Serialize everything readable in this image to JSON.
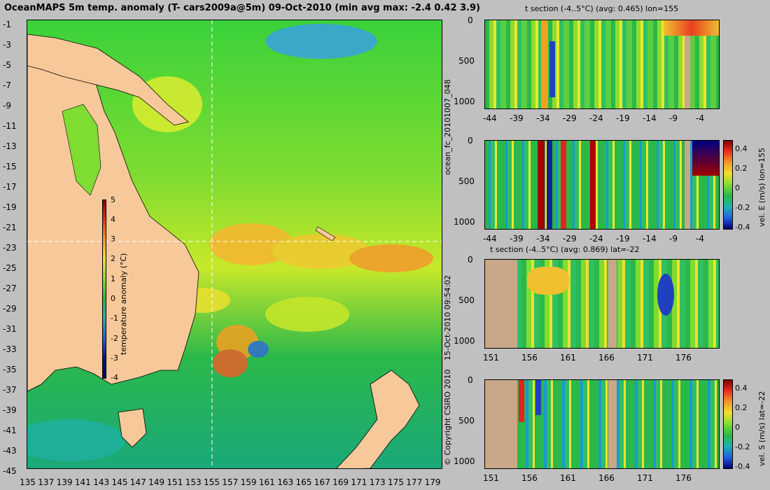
{
  "title": "OceanMAPS 5m temp. anomaly (T- cars2009a@5m) 09-Oct-2010 (min avg max: -2.4 0.42 3.9)",
  "map": {
    "lat_labels": [
      "-1",
      "-3",
      "-5",
      "-7",
      "-9",
      "-11",
      "-13",
      "-15",
      "-17",
      "-19",
      "-21",
      "-23",
      "-25",
      "-27",
      "-29",
      "-31",
      "-33",
      "-35",
      "-37",
      "-39",
      "-41",
      "-43",
      "-45"
    ],
    "lon_labels": [
      "135",
      "137",
      "139",
      "141",
      "143",
      "145",
      "147",
      "149",
      "151",
      "153",
      "155",
      "157",
      "159",
      "161",
      "163",
      "165",
      "167",
      "169",
      "171",
      "173",
      "175",
      "177",
      "179"
    ],
    "colorbar": {
      "label": "temperature anomaly (°C)",
      "ticks": [
        "5",
        "4",
        "3",
        "2",
        "1",
        "0",
        "-1",
        "-2",
        "-3",
        "-4"
      ],
      "range": [
        -4,
        5
      ]
    },
    "crosshair": {
      "lon": 155,
      "lat": -22
    }
  },
  "panels": [
    {
      "title": "t section (-4..5°C) (avg: 0.465) lon=155",
      "y_ticks": [
        "0",
        "500",
        "1000"
      ],
      "x_ticks": [
        "-44",
        "-39",
        "-34",
        "-29",
        "-24",
        "-19",
        "-14",
        "-9",
        "-4"
      ]
    },
    {
      "title": "",
      "y_ticks": [
        "0",
        "500",
        "1000"
      ],
      "x_ticks": [
        "-44",
        "-39",
        "-34",
        "-29",
        "-24",
        "-19",
        "-14",
        "-9",
        "-4"
      ],
      "colorbar": {
        "label": "vel. E (m/s) lon=155",
        "ticks": [
          "0.4",
          "0.2",
          "0",
          "-0.2",
          "-0.4"
        ]
      }
    },
    {
      "title": "t section (-4..5°C) (avg: 0.869) lat=-22",
      "y_ticks": [
        "0",
        "500",
        "1000"
      ],
      "x_ticks": [
        "151",
        "156",
        "161",
        "166",
        "171",
        "176"
      ]
    },
    {
      "title": "",
      "y_ticks": [
        "0",
        "500",
        "1000"
      ],
      "x_ticks": [
        "151",
        "156",
        "161",
        "166",
        "171",
        "176"
      ],
      "colorbar": {
        "label": "vel. S (m/s) lat=-22",
        "ticks": [
          "0.4",
          "0.2",
          "0",
          "-0.2",
          "-0.4"
        ]
      }
    }
  ],
  "side_labels": {
    "run": "ocean_fc_20101007_048",
    "stamp": "15-Oct-2010 09:54:02",
    "copyright": "© Copyright CSIRO 2010"
  },
  "colors": {
    "land": "#f7c99a",
    "section_land": "#c8a888",
    "ocean_base": "#2fbf3a",
    "background": "#c0c0c0"
  }
}
